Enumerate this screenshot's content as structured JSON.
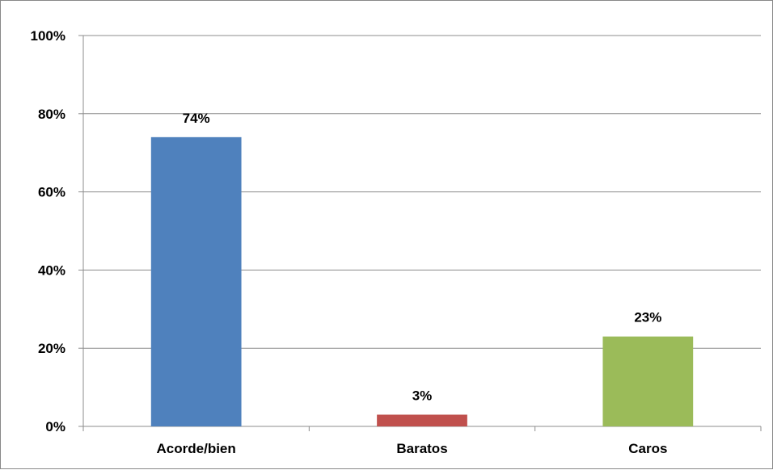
{
  "chart_data": {
    "type": "bar",
    "title": "",
    "xlabel": "",
    "ylabel": "",
    "categories": [
      "Acorde/bien",
      "Baratos",
      "Caros"
    ],
    "values": [
      74,
      3,
      23
    ],
    "value_labels": [
      "74%",
      "3%",
      "23%"
    ],
    "colors": [
      "#4F81BD",
      "#C0504D",
      "#9BBB59"
    ],
    "ylim": [
      0,
      100
    ],
    "yticks": [
      0,
      20,
      40,
      60,
      80,
      100
    ],
    "ytick_labels": [
      "0%",
      "20%",
      "40%",
      "60%",
      "80%",
      "100%"
    ],
    "grid": true,
    "legend": "none"
  }
}
